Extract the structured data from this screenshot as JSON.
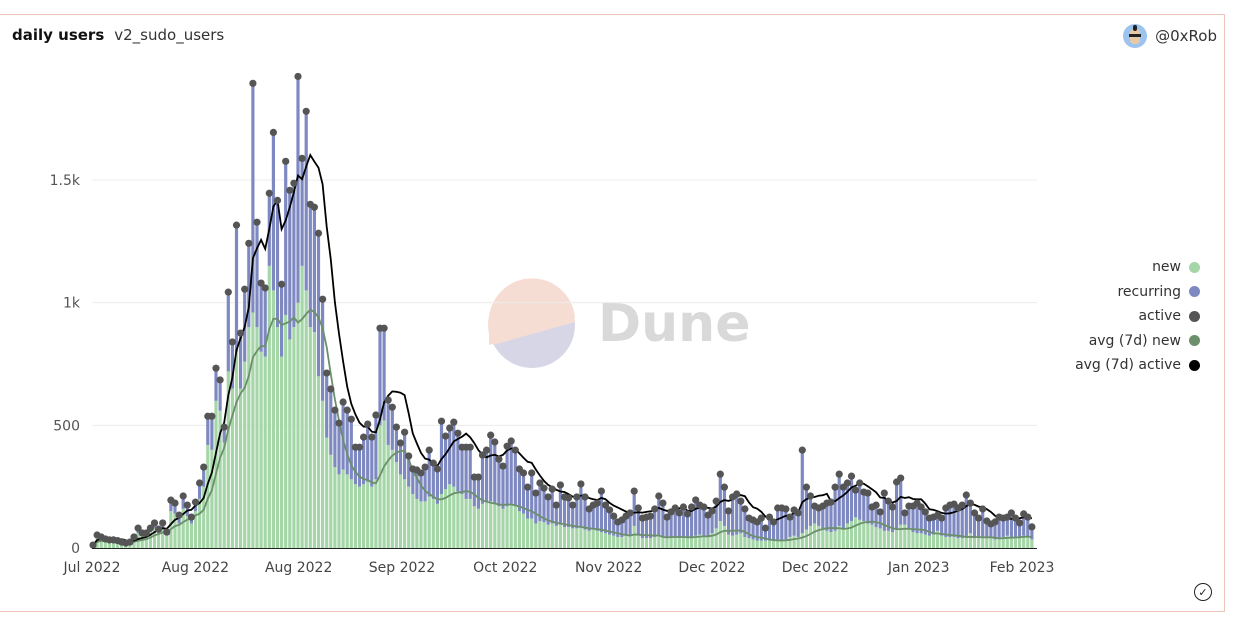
{
  "header": {
    "title": "daily users",
    "query": "v2_sudo_users",
    "author": "@0xRob"
  },
  "watermark": "Dune",
  "legend": [
    {
      "label": "new",
      "color": "#a5d6a7"
    },
    {
      "label": "recurring",
      "color": "#7f89c1"
    },
    {
      "label": "active",
      "color": "#555555"
    },
    {
      "label": "avg (7d) new",
      "color": "#6b8f6b"
    },
    {
      "label": "avg (7d) active",
      "color": "#000000"
    }
  ],
  "chart_data": {
    "type": "bar",
    "stacked": true,
    "title": "daily users",
    "xlabel": "",
    "ylabel": "",
    "ylim": [
      0,
      1950
    ],
    "grid": true,
    "legend_position": "right",
    "x_tick_labels": [
      "Jul 2022",
      "Aug 2022",
      "Aug 2022",
      "Sep 2022",
      "Oct 2022",
      "Nov 2022",
      "Dec 2022",
      "Dec 2022",
      "Jan 2023",
      "Feb 2023"
    ],
    "y_ticks": [
      {
        "value": 0,
        "label": "0"
      },
      {
        "value": 500,
        "label": "500"
      },
      {
        "value": 1000,
        "label": "1k"
      },
      {
        "value": 1500,
        "label": "1.5k"
      }
    ],
    "series_note_order": [
      "new",
      "recurring",
      "active",
      "avg (7d) new",
      "avg (7d) active"
    ],
    "active": [
      12,
      53,
      45,
      37,
      33,
      33,
      30,
      24,
      20,
      24,
      45,
      81,
      61,
      61,
      81,
      102,
      77,
      102,
      65,
      195,
      183,
      134,
      212,
      175,
      126,
      187,
      265,
      330,
      537,
      537,
      733,
      685,
      493,
      1043,
      840,
      1316,
      876,
      1055,
      1242,
      1894,
      1328,
      1080,
      1060,
      1446,
      1694,
      1417,
      1075,
      1576,
      1458,
      1487,
      1922,
      1588,
      1780,
      1401,
      1389,
      1283,
      1014,
      713,
      648,
      562,
      509,
      595,
      562,
      525,
      411,
      411,
      452,
      505,
      452,
      542,
      896,
      896,
      603,
      574,
      493,
      428,
      472,
      375,
      322,
      318,
      306,
      330,
      399,
      346,
      322,
      517,
      456,
      489,
      513,
      468,
      411,
      411,
      411,
      289,
      289,
      379,
      399,
      460,
      432,
      362,
      334,
      415,
      436,
      399,
      322,
      306,
      248,
      306,
      224,
      265,
      244,
      208,
      240,
      175,
      257,
      208,
      204,
      175,
      208,
      261,
      208,
      159,
      175,
      183,
      232,
      175,
      155,
      130,
      106,
      114,
      130,
      143,
      232,
      163,
      122,
      126,
      130,
      159,
      212,
      183,
      126,
      147,
      163,
      143,
      167,
      139,
      167,
      196,
      175,
      167,
      134,
      151,
      191,
      301,
      248,
      151,
      208,
      220,
      191,
      159,
      122,
      114,
      106,
      122,
      81,
      126,
      106,
      163,
      163,
      159,
      126,
      155,
      143,
      399,
      248,
      212,
      171,
      163,
      171,
      183,
      187,
      248,
      301,
      248,
      265,
      293,
      236,
      265,
      228,
      224,
      167,
      175,
      147,
      224,
      191,
      167,
      269,
      285,
      143,
      171,
      171,
      183,
      167,
      147,
      122,
      126,
      134,
      122,
      163,
      175,
      179,
      163,
      175,
      216,
      183,
      143,
      122,
      159,
      110,
      98,
      106,
      126,
      122,
      126,
      143,
      122,
      102,
      139,
      126,
      86
    ],
    "new": [
      10,
      40,
      35,
      30,
      28,
      28,
      25,
      20,
      18,
      20,
      35,
      60,
      50,
      50,
      65,
      80,
      60,
      80,
      50,
      150,
      140,
      100,
      160,
      130,
      100,
      150,
      200,
      250,
      420,
      400,
      600,
      560,
      430,
      720,
      650,
      800,
      650,
      760,
      900,
      960,
      900,
      800,
      780,
      1150,
      1050,
      900,
      780,
      950,
      850,
      900,
      1000,
      1150,
      1050,
      900,
      880,
      700,
      600,
      450,
      380,
      330,
      300,
      320,
      300,
      280,
      260,
      250,
      260,
      270,
      250,
      280,
      500,
      520,
      420,
      400,
      350,
      300,
      280,
      250,
      220,
      200,
      190,
      190,
      210,
      200,
      180,
      220,
      240,
      260,
      250,
      230,
      220,
      200,
      200,
      170,
      160,
      180,
      190,
      190,
      180,
      170,
      160,
      170,
      180,
      170,
      150,
      140,
      120,
      120,
      100,
      110,
      105,
      95,
      100,
      90,
      95,
      85,
      85,
      80,
      80,
      85,
      75,
      70,
      75,
      70,
      65,
      60,
      55,
      50,
      45,
      45,
      50,
      50,
      90,
      50,
      40,
      40,
      40,
      45,
      55,
      45,
      40,
      45,
      45,
      40,
      45,
      45,
      45,
      50,
      55,
      50,
      45,
      60,
      80,
      110,
      90,
      55,
      50,
      55,
      60,
      45,
      40,
      35,
      30,
      30,
      30,
      30,
      30,
      35,
      30,
      35,
      45,
      50,
      45,
      60,
      75,
      90,
      100,
      90,
      80,
      70,
      65,
      70,
      90,
      80,
      100,
      110,
      125,
      115,
      110,
      100,
      95,
      85,
      80,
      70,
      70,
      65,
      75,
      95,
      95,
      75,
      65,
      60,
      60,
      55,
      50,
      55,
      70,
      50,
      45,
      45,
      45,
      40,
      40,
      45,
      60,
      40,
      40,
      40,
      40,
      40,
      35,
      40,
      45,
      50,
      45,
      45,
      45,
      50,
      45,
      35
    ]
  }
}
